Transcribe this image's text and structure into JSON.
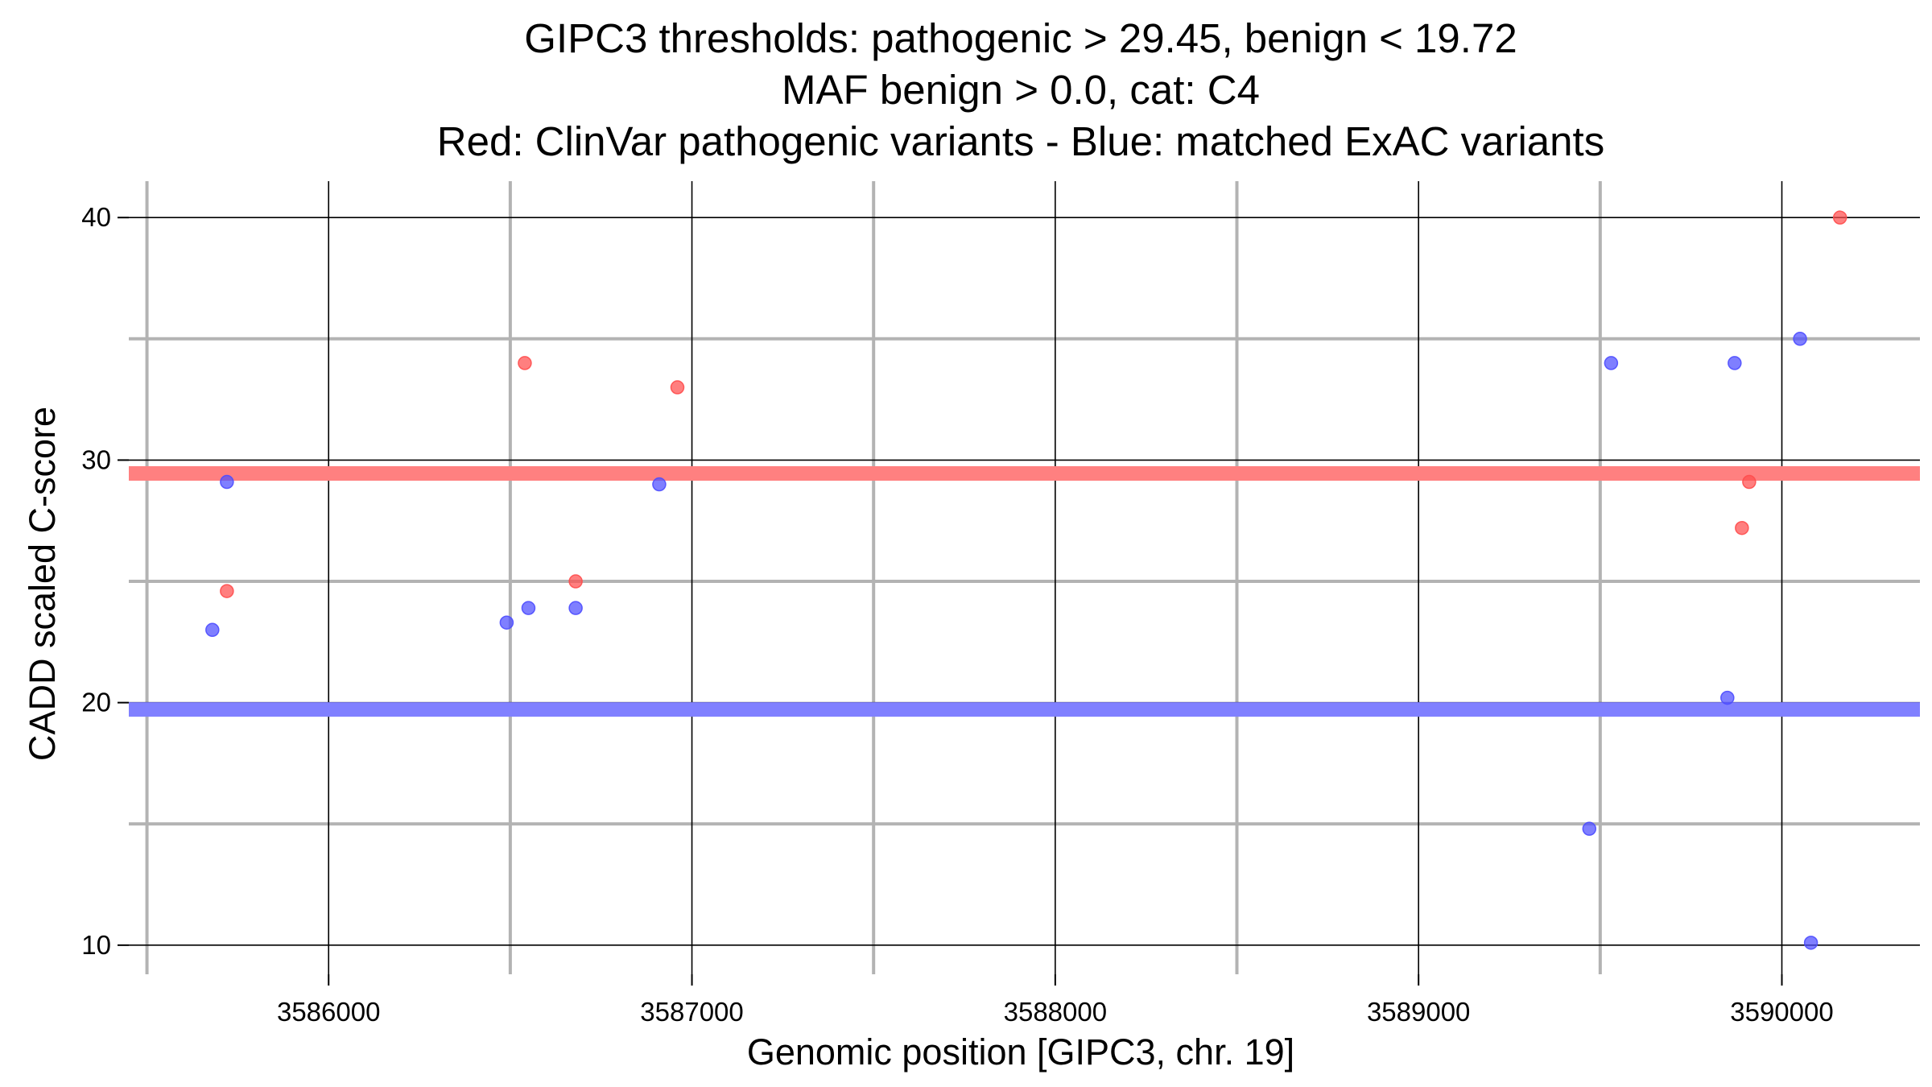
{
  "chart_data": {
    "type": "scatter",
    "title_lines": [
      "GIPC3 thresholds: pathogenic > 29.45, benign < 19.72",
      "MAF benign > 0.0, cat: C4",
      "Red: ClinVar pathogenic variants - Blue: matched ExAC variants"
    ],
    "xlabel": "Genomic position [GIPC3, chr. 19]",
    "ylabel": "CADD scaled C-score",
    "xlim": [
      3585450,
      3590380
    ],
    "ylim": [
      8.8,
      41.5
    ],
    "x_ticks": [
      3586000,
      3587000,
      3588000,
      3589000,
      3590000
    ],
    "x_tick_labels": [
      "3586000",
      "3587000",
      "3588000",
      "3589000",
      "3590000"
    ],
    "y_ticks": [
      10,
      20,
      30,
      40
    ],
    "y_tick_labels": [
      "10",
      "20",
      "30",
      "40"
    ],
    "x_minor_ticks": [
      3585500,
      3586500,
      3587500,
      3588500,
      3589500
    ],
    "y_minor_ticks": [
      15,
      25,
      35
    ],
    "grid": true,
    "thresholds": [
      {
        "name": "pathogenic",
        "value": 29.45,
        "color": "#ff8080"
      },
      {
        "name": "benign",
        "value": 19.72,
        "color": "#8080ff"
      }
    ],
    "series": [
      {
        "name": "ClinVar pathogenic variants",
        "color": "#ff4d4d",
        "points": [
          {
            "x": 3585720,
            "y": 24.6
          },
          {
            "x": 3586540,
            "y": 34.0
          },
          {
            "x": 3586680,
            "y": 25.0
          },
          {
            "x": 3586960,
            "y": 33.0
          },
          {
            "x": 3589890,
            "y": 27.2
          },
          {
            "x": 3589910,
            "y": 29.1
          },
          {
            "x": 3590160,
            "y": 40.0
          }
        ]
      },
      {
        "name": "matched ExAC variants",
        "color": "#4d4dff",
        "points": [
          {
            "x": 3585680,
            "y": 23.0
          },
          {
            "x": 3585720,
            "y": 29.1
          },
          {
            "x": 3586490,
            "y": 23.3
          },
          {
            "x": 3586550,
            "y": 23.9
          },
          {
            "x": 3586680,
            "y": 23.9
          },
          {
            "x": 3586910,
            "y": 29.0
          },
          {
            "x": 3589470,
            "y": 14.8
          },
          {
            "x": 3589530,
            "y": 34.0
          },
          {
            "x": 3589850,
            "y": 20.2
          },
          {
            "x": 3589870,
            "y": 34.0
          },
          {
            "x": 3590050,
            "y": 35.0
          },
          {
            "x": 3590080,
            "y": 10.1
          }
        ]
      }
    ]
  }
}
